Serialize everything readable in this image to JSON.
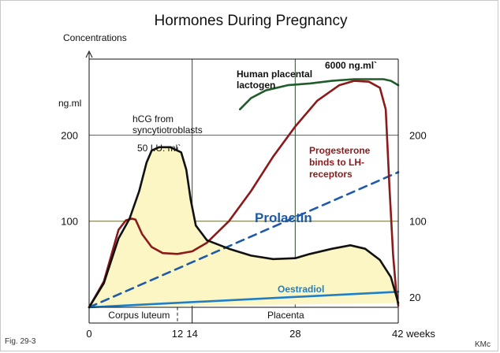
{
  "chart_data": {
    "type": "line",
    "title": "Hormones During Pregnancy",
    "ylabel": "Concentrations",
    "y_unit_label": "ng.ml",
    "x_ticks": [
      0,
      12,
      14,
      28,
      42
    ],
    "x_unit": "weeks",
    "xlim": [
      0,
      42
    ],
    "y_ticks_left": [
      100,
      200
    ],
    "y_ticks_right": [
      20,
      100,
      200
    ],
    "ylim": [
      0,
      270
    ],
    "phases": [
      {
        "label": "Corpus luteum",
        "from": 0,
        "to": 14
      },
      {
        "label": "Placenta",
        "from": 14,
        "to": 42
      }
    ],
    "hcg_marker_week": 12,
    "series": [
      {
        "name": "hCG from syncytiotroblasts",
        "peak_label": "50 I.U. ml",
        "color": "#111111",
        "fill": "#fbf6c3",
        "points": [
          [
            0,
            0
          ],
          [
            2,
            28
          ],
          [
            4,
            80
          ],
          [
            5.5,
            103
          ],
          [
            6.8,
            135
          ],
          [
            7.8,
            168
          ],
          [
            8.5,
            182
          ],
          [
            9.5,
            186
          ],
          [
            11,
            186
          ],
          [
            12.5,
            180
          ],
          [
            13.2,
            160
          ],
          [
            13.8,
            125
          ],
          [
            14.5,
            95
          ],
          [
            16,
            78
          ],
          [
            19,
            68
          ],
          [
            22,
            60
          ],
          [
            25,
            56
          ],
          [
            28,
            57
          ],
          [
            30,
            62
          ],
          [
            33,
            68
          ],
          [
            35.5,
            72
          ],
          [
            37.5,
            68
          ],
          [
            39.5,
            55
          ],
          [
            41,
            35
          ],
          [
            42,
            5
          ]
        ]
      },
      {
        "name": "Progesterone binds to LH-receptors",
        "color": "#8b1a1a",
        "points": [
          [
            0,
            0
          ],
          [
            2,
            30
          ],
          [
            4,
            90
          ],
          [
            5,
            101
          ],
          [
            5.8,
            103
          ],
          [
            6.3,
            102
          ],
          [
            7.2,
            85
          ],
          [
            8.5,
            70
          ],
          [
            10,
            63
          ],
          [
            12,
            62
          ],
          [
            14,
            65
          ],
          [
            16,
            75
          ],
          [
            19,
            100
          ],
          [
            22,
            135
          ],
          [
            25,
            175
          ],
          [
            28,
            210
          ],
          [
            31,
            240
          ],
          [
            34,
            258
          ],
          [
            36,
            263
          ],
          [
            38,
            262
          ],
          [
            39.5,
            255
          ],
          [
            40.3,
            230
          ],
          [
            40.8,
            140
          ],
          [
            41.3,
            60
          ],
          [
            41.7,
            20
          ],
          [
            42,
            2
          ]
        ]
      },
      {
        "name": "Human placental lactogen",
        "peak_label": "6000 ng.ml",
        "color": "#1f5c2a",
        "points": [
          [
            20.5,
            230
          ],
          [
            22,
            243
          ],
          [
            24,
            252
          ],
          [
            27,
            258
          ],
          [
            30,
            260
          ],
          [
            33,
            263
          ],
          [
            36,
            265
          ],
          [
            38,
            265
          ],
          [
            40,
            265
          ],
          [
            41,
            263
          ],
          [
            42,
            258
          ]
        ]
      },
      {
        "name": "Prolactin",
        "color": "#1f5aa8",
        "dashed": true,
        "points": [
          [
            0,
            0
          ],
          [
            42,
            157
          ]
        ]
      },
      {
        "name": "Oestradiol",
        "color": "#1e7fc8",
        "points": [
          [
            0,
            0
          ],
          [
            42,
            18
          ]
        ]
      }
    ]
  },
  "caption": "Fig. 29-3",
  "credit": "KMc"
}
